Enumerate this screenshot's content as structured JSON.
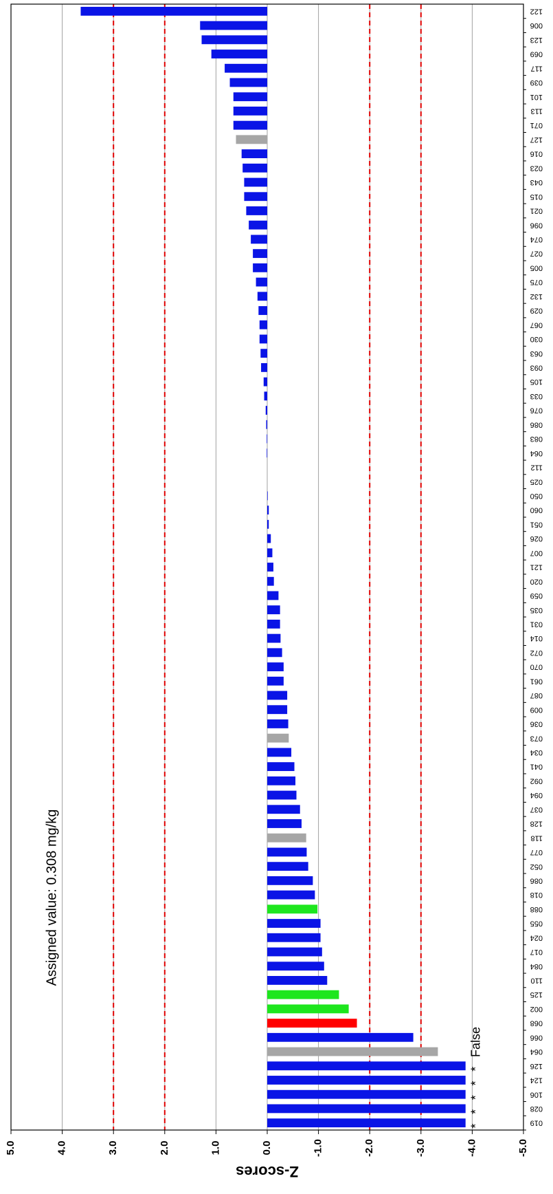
{
  "chart_data": {
    "type": "bar",
    "orientation": "horizontal",
    "y_axis_title": "Z-scores",
    "annotation": "Assigned value:  0.308 mg/kg",
    "categories": [
      "019",
      "028",
      "106",
      "124",
      "126",
      "064",
      "066",
      "068",
      "002",
      "125",
      "110",
      "084",
      "017",
      "024",
      "055",
      "088",
      "018",
      "086",
      "052",
      "077",
      "118",
      "128",
      "037",
      "094",
      "092",
      "041",
      "034",
      "073",
      "036",
      "009",
      "087",
      "061",
      "070",
      "072",
      "014",
      "031",
      "035",
      "059",
      "020",
      "121",
      "007",
      "026",
      "051",
      "060",
      "050",
      "025",
      "112",
      "064",
      "083",
      "086",
      "076",
      "033",
      "105",
      "093",
      "063",
      "030",
      "067",
      "029",
      "132",
      "075",
      "005",
      "027",
      "074",
      "096",
      "021",
      "015",
      "043",
      "023",
      "016",
      "127",
      "071",
      "113",
      "101",
      "039",
      "117",
      "069",
      "123",
      "006",
      "122"
    ],
    "values": [
      -3.87,
      -3.87,
      -3.87,
      -3.87,
      -3.87,
      -3.33,
      -2.85,
      -1.75,
      -1.59,
      -1.4,
      -1.17,
      -1.11,
      -1.07,
      -1.04,
      -1.04,
      -0.98,
      -0.93,
      -0.89,
      -0.8,
      -0.77,
      -0.76,
      -0.67,
      -0.64,
      -0.57,
      -0.55,
      -0.53,
      -0.47,
      -0.42,
      -0.41,
      -0.39,
      -0.39,
      -0.32,
      -0.32,
      -0.29,
      -0.26,
      -0.25,
      -0.25,
      -0.22,
      -0.13,
      -0.12,
      -0.1,
      -0.07,
      -0.03,
      -0.03,
      -0.01,
      0,
      0,
      0.01,
      0.01,
      0.02,
      0.03,
      0.06,
      0.07,
      0.12,
      0.13,
      0.15,
      0.15,
      0.17,
      0.19,
      0.22,
      0.28,
      0.28,
      0.32,
      0.36,
      0.41,
      0.45,
      0.45,
      0.48,
      0.5,
      0.61,
      0.66,
      0.66,
      0.66,
      0.73,
      0.83,
      1.09,
      1.28,
      1.31,
      3.64
    ],
    "bar_colors": [
      "#0a14e6",
      "#0a14e6",
      "#0a14e6",
      "#0a14e6",
      "#0a14e6",
      "#a6a6a6",
      "#0a14e6",
      "#ff0000",
      "#1ee61e",
      "#1ee61e",
      "#0a14e6",
      "#0a14e6",
      "#0a14e6",
      "#0a14e6",
      "#0a14e6",
      "#1ee61e",
      "#0a14e6",
      "#0a14e6",
      "#0a14e6",
      "#0a14e6",
      "#a6a6a6",
      "#0a14e6",
      "#0a14e6",
      "#0a14e6",
      "#0a14e6",
      "#0a14e6",
      "#0a14e6",
      "#a6a6a6",
      "#0a14e6",
      "#0a14e6",
      "#0a14e6",
      "#0a14e6",
      "#0a14e6",
      "#0a14e6",
      "#0a14e6",
      "#0a14e6",
      "#0a14e6",
      "#0a14e6",
      "#0a14e6",
      "#0a14e6",
      "#0a14e6",
      "#0a14e6",
      "#0a14e6",
      "#0a14e6",
      "#0a14e6",
      "#0a14e6",
      "#0a14e6",
      "#0a14e6",
      "#0a14e6",
      "#0a14e6",
      "#0a14e6",
      "#0a14e6",
      "#0a14e6",
      "#0a14e6",
      "#0a14e6",
      "#0a14e6",
      "#0a14e6",
      "#0a14e6",
      "#0a14e6",
      "#0a14e6",
      "#0a14e6",
      "#0a14e6",
      "#0a14e6",
      "#0a14e6",
      "#0a14e6",
      "#0a14e6",
      "#0a14e6",
      "#0a14e6",
      "#0a14e6",
      "#a6a6a6",
      "#0a14e6",
      "#0a14e6",
      "#0a14e6",
      "#0a14e6",
      "#0a14e6",
      "#0a14e6",
      "#0a14e6",
      "#0a14e6",
      "#0a14e6"
    ],
    "point_labels": [
      "*",
      "*",
      "*",
      "*",
      "*",
      "False",
      null,
      null,
      null,
      null,
      null,
      null,
      null,
      null,
      null,
      null,
      null,
      null,
      null,
      null,
      null,
      null,
      null,
      null,
      null,
      null,
      null,
      null,
      null,
      null,
      null,
      null,
      null,
      null,
      null,
      null,
      null,
      null,
      null,
      null,
      null,
      null,
      null,
      null,
      null,
      null,
      null,
      null,
      null,
      null,
      null,
      null,
      null,
      null,
      null,
      null,
      null,
      null,
      null,
      null,
      null,
      null,
      null,
      null,
      null,
      null,
      null,
      null,
      null,
      null,
      null,
      null,
      null,
      null,
      null,
      null,
      null,
      null,
      null
    ],
    "ylim": [
      5,
      -5
    ],
    "yticks": [
      {
        "value": 5,
        "label": "5.0"
      },
      {
        "value": 4,
        "label": "4.0"
      },
      {
        "value": 3,
        "label": "3.0"
      },
      {
        "value": 2,
        "label": "2.0"
      },
      {
        "value": 1,
        "label": "1.0"
      },
      {
        "value": 0,
        "label": "0.0"
      },
      {
        "value": -1,
        "label": "-1.0"
      },
      {
        "value": -2,
        "label": "-2.0"
      },
      {
        "value": -3,
        "label": "-3.0"
      },
      {
        "value": -4,
        "label": "-4.0"
      },
      {
        "value": -5,
        "label": "-5.0"
      }
    ],
    "grid": true,
    "grid_color": "#a0a0a0",
    "reference_lines": [
      3,
      2,
      -2,
      -3
    ],
    "reference_color": "#e00000"
  }
}
